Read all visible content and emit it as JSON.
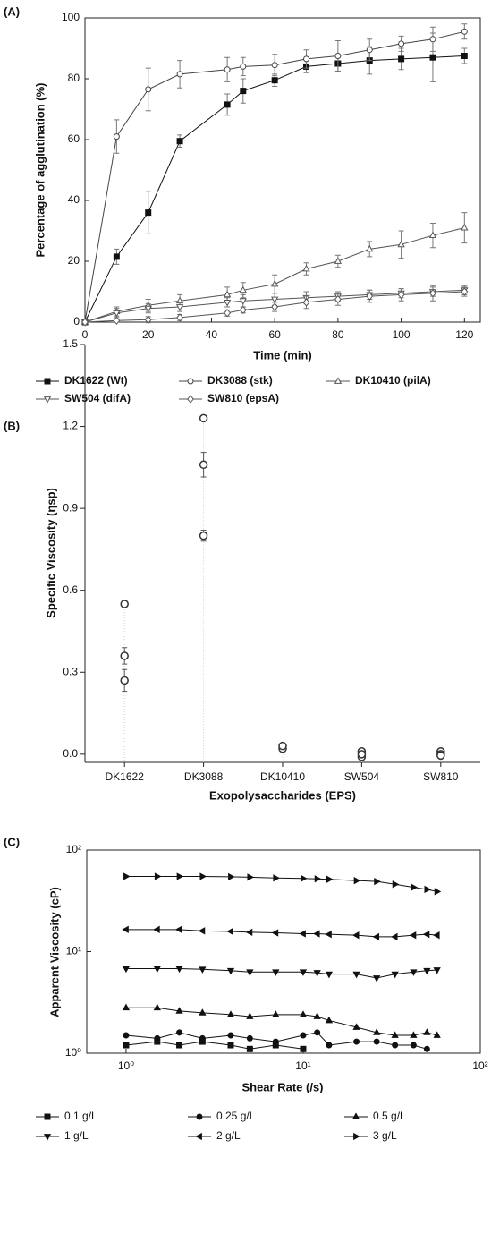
{
  "chart_data": [
    {
      "type": "line",
      "panel": "(A)",
      "y_label": "Percentage of agglutination (%)",
      "x_label": "Time (min)",
      "x": [
        0,
        10,
        20,
        30,
        45,
        50,
        60,
        70,
        80,
        90,
        100,
        110,
        120
      ],
      "xlim": [
        0,
        125
      ],
      "xticks": [
        0,
        20,
        40,
        60,
        80,
        100,
        120
      ],
      "ylim": [
        0,
        100
      ],
      "yticks": [
        0,
        20,
        40,
        60,
        80,
        100
      ],
      "series": [
        {
          "name": "DK1622 (Wt)",
          "color": "#111111",
          "marker": "square",
          "values": [
            0,
            21.5,
            36,
            59.5,
            71.5,
            76,
            79.5,
            84,
            85,
            86,
            86.5,
            87,
            87.5
          ],
          "errors": [
            0,
            2.5,
            7,
            2,
            3.5,
            4,
            2,
            2,
            2.5,
            4.5,
            3.5,
            8,
            2.5
          ]
        },
        {
          "name": "DK3088 (stk)",
          "color": "#444444",
          "marker": "circle-open",
          "values": [
            0,
            61,
            76.5,
            81.5,
            83,
            84,
            84.5,
            86.5,
            87.5,
            89.5,
            91.5,
            93,
            95.5
          ],
          "errors": [
            0,
            5.5,
            7,
            4.5,
            4,
            3,
            3.5,
            3,
            5,
            3.5,
            2.5,
            4,
            2.5
          ]
        },
        {
          "name": "DK10410 (pilA)",
          "color": "#555555",
          "marker": "triangle-up-open",
          "values": [
            0,
            3.5,
            5.5,
            7,
            9,
            10.5,
            12.5,
            17.5,
            20,
            24,
            25.5,
            28.5,
            31
          ],
          "errors": [
            0,
            1.5,
            2,
            2,
            2.5,
            2.5,
            3,
            2,
            2,
            2.5,
            4.5,
            4,
            5
          ]
        },
        {
          "name": "SW504 (difA)",
          "color": "#555555",
          "marker": "triangle-down-open",
          "values": [
            0,
            3,
            4.5,
            5,
            6.5,
            7,
            7.5,
            8,
            8.5,
            9,
            9.5,
            10,
            10.5
          ],
          "errors": [
            0,
            1.5,
            1.5,
            1.5,
            1.5,
            2,
            2,
            2,
            1.5,
            1.5,
            1.5,
            1.5,
            1.5
          ]
        },
        {
          "name": "SW810 (epsA)",
          "color": "#555555",
          "marker": "diamond-open",
          "values": [
            0,
            0.5,
            0.8,
            1.5,
            3,
            4,
            5,
            6.5,
            7.5,
            8.5,
            9,
            9.5,
            10
          ],
          "errors": [
            0,
            0.5,
            1,
            1,
            1,
            1,
            1.5,
            2,
            2,
            2,
            2,
            2.5,
            1.5
          ]
        }
      ]
    },
    {
      "type": "scatter",
      "panel": "(B)",
      "y_label": "Specific Viscosity (ηsp)",
      "x_label": "Exopolysaccharides (EPS)",
      "categories": [
        "DK1622",
        "DK3088",
        "DK10410",
        "SW504",
        "SW810"
      ],
      "values": [
        [
          0.55,
          0.36,
          0.27
        ],
        [
          1.23,
          1.06,
          0.8
        ],
        [
          0.03,
          0.02,
          0.03
        ],
        [
          0.01,
          -0.01,
          0
        ],
        [
          0.01,
          0,
          -0.005
        ]
      ],
      "errors": [
        [
          0.01,
          0.03,
          0.04
        ],
        [
          0.01,
          0.045,
          0.02
        ],
        [
          0.01,
          0.01,
          0.01
        ],
        [
          0.01,
          0.01,
          0.01
        ],
        [
          0.01,
          0.01,
          0.01
        ]
      ],
      "color": "#333333",
      "marker": "circle-open",
      "ylim": [
        -0.03,
        1.5
      ],
      "yticks": [
        {
          "value": 0,
          "label": "0.0"
        },
        0.3,
        0.6,
        0.9,
        1.2,
        1.5
      ]
    },
    {
      "type": "line",
      "panel": "(C)",
      "y_label": "Apparent Viscosity (cP)",
      "x_label": "Shear Rate (/s)",
      "xscale": "log",
      "yscale": "log",
      "x": [
        1,
        1.5,
        2,
        2.7,
        3.9,
        5,
        7,
        10,
        12,
        14,
        20,
        26,
        33,
        42,
        50,
        57
      ],
      "xlim": [
        0.6,
        100
      ],
      "xticks": [
        {
          "value": 1,
          "label": "10⁰"
        },
        {
          "value": 10,
          "label": "10¹"
        },
        {
          "value": 100,
          "label": "10²"
        }
      ],
      "ylim": [
        1,
        100
      ],
      "yticks": [
        {
          "value": 1,
          "label": "10⁰"
        },
        {
          "value": 10,
          "label": "10¹"
        },
        {
          "value": 100,
          "label": "10²"
        }
      ],
      "series": [
        {
          "name": "0.1 g/L",
          "color": "#111111",
          "marker": "square",
          "values": [
            1.2,
            1.3,
            1.2,
            1.3,
            1.2,
            1.1,
            1.2,
            1.1,
            null,
            null,
            null,
            null,
            null,
            null,
            null,
            null
          ]
        },
        {
          "name": "0.25 g/L",
          "color": "#111111",
          "marker": "circle",
          "values": [
            1.5,
            1.4,
            1.6,
            1.4,
            1.5,
            1.4,
            1.3,
            1.5,
            1.6,
            1.2,
            1.3,
            1.3,
            1.2,
            1.2,
            1.1,
            null
          ]
        },
        {
          "name": "0.5 g/L",
          "color": "#111111",
          "marker": "triangle-up",
          "values": [
            2.8,
            2.8,
            2.6,
            2.5,
            2.4,
            2.3,
            2.4,
            2.4,
            2.3,
            2.1,
            1.8,
            1.6,
            1.5,
            1.5,
            1.6,
            1.5
          ]
        },
        {
          "name": "1 g/L",
          "color": "#111111",
          "marker": "triangle-down",
          "values": [
            6.8,
            6.8,
            6.8,
            6.7,
            6.5,
            6.3,
            6.3,
            6.3,
            6.2,
            6,
            6,
            5.5,
            6,
            6.3,
            6.5,
            6.6
          ]
        },
        {
          "name": "2 g/L",
          "color": "#111111",
          "marker": "triangle-left",
          "values": [
            16.5,
            16.5,
            16.5,
            16,
            15.8,
            15.5,
            15.3,
            15,
            15,
            14.8,
            14.5,
            14,
            14,
            14.5,
            14.8,
            14.5
          ]
        },
        {
          "name": "3 g/L",
          "color": "#111111",
          "marker": "triangle-right",
          "values": [
            55,
            55,
            55,
            55,
            54.5,
            54,
            53,
            52.5,
            52,
            51.5,
            50,
            49,
            46,
            43,
            41,
            39
          ]
        }
      ]
    }
  ]
}
